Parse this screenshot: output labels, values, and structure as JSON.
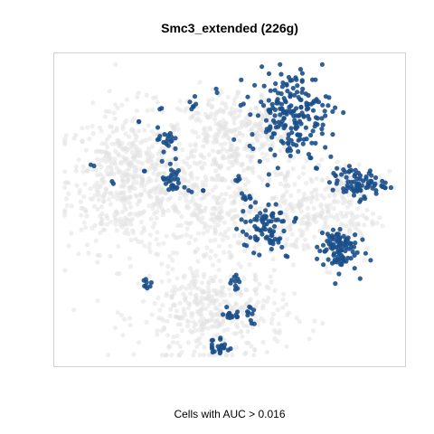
{
  "chart_data": {
    "type": "scatter",
    "title": "Smc3_extended (226g)",
    "xlabel": "",
    "ylabel": "",
    "caption": "Cells with AUC > 0.016",
    "grid": false,
    "axes_visible": false,
    "xlim": [
      0,
      100
    ],
    "ylim": [
      0,
      100
    ],
    "colors": {
      "background_cells": "#e2e2e2",
      "high_auc_cells": "#1a4f8a",
      "frame": "#d0d0d0"
    },
    "series": [
      {
        "group": "background",
        "clusters": [
          {
            "cx": 20,
            "cy": 60,
            "sx": 9,
            "sy": 12,
            "n": 520
          },
          {
            "cx": 48,
            "cy": 75,
            "sx": 8,
            "sy": 8,
            "n": 240
          },
          {
            "cx": 44,
            "cy": 50,
            "sx": 8,
            "sy": 10,
            "n": 260
          },
          {
            "cx": 45,
            "cy": 15,
            "sx": 11,
            "sy": 8,
            "n": 380
          },
          {
            "cx": 68,
            "cy": 50,
            "sx": 7,
            "sy": 8,
            "n": 160
          },
          {
            "cx": 82,
            "cy": 48,
            "sx": 6,
            "sy": 8,
            "n": 140
          },
          {
            "cx": 62,
            "cy": 78,
            "sx": 5,
            "sy": 6,
            "n": 110
          },
          {
            "cx": 88,
            "cy": 60,
            "sx": 4,
            "sy": 3,
            "n": 60
          }
        ]
      },
      {
        "group": "high_auc",
        "clusters": [
          {
            "cx": 68,
            "cy": 83,
            "sx": 6,
            "sy": 7,
            "n": 190
          },
          {
            "cx": 88,
            "cy": 59,
            "sx": 4,
            "sy": 2.5,
            "n": 80
          },
          {
            "cx": 82,
            "cy": 37,
            "sx": 3,
            "sy": 4,
            "n": 95
          },
          {
            "cx": 60,
            "cy": 44,
            "sx": 3.5,
            "sy": 4,
            "n": 75
          },
          {
            "cx": 33,
            "cy": 60,
            "sx": 1.5,
            "sy": 3,
            "n": 30
          },
          {
            "cx": 31,
            "cy": 74,
            "sx": 1.2,
            "sy": 2,
            "n": 18
          },
          {
            "cx": 47,
            "cy": 4,
            "sx": 1.5,
            "sy": 1.8,
            "n": 22
          },
          {
            "cx": 50,
            "cy": 15,
            "sx": 1.5,
            "sy": 1.5,
            "n": 15
          },
          {
            "cx": 56,
            "cy": 14,
            "sx": 0.8,
            "sy": 1.5,
            "n": 10
          },
          {
            "cx": 52,
            "cy": 26,
            "sx": 0.8,
            "sy": 1.5,
            "n": 10
          },
          {
            "cx": 26,
            "cy": 25,
            "sx": 0.8,
            "sy": 1.5,
            "n": 8
          },
          {
            "cx": 39,
            "cy": 86,
            "sx": 1,
            "sy": 1,
            "n": 6
          },
          {
            "cx": 55,
            "cy": 54,
            "sx": 1,
            "sy": 1,
            "n": 8
          },
          {
            "cx": 52,
            "cy": 60,
            "sx": 0.6,
            "sy": 0.8,
            "n": 5
          },
          {
            "cx": 70,
            "cy": 47,
            "sx": 0.5,
            "sy": 0.5,
            "n": 3
          },
          {
            "cx": 68,
            "cy": 70,
            "sx": 0.6,
            "sy": 0.6,
            "n": 4
          },
          {
            "cx": 71,
            "cy": 76,
            "sx": 0.6,
            "sy": 0.6,
            "n": 3
          },
          {
            "cx": 9,
            "cy": 65,
            "sx": 0.4,
            "sy": 0.4,
            "n": 2
          },
          {
            "cx": 15,
            "cy": 59,
            "sx": 0.4,
            "sy": 0.4,
            "n": 2
          },
          {
            "cx": 23,
            "cy": 80,
            "sx": 0.4,
            "sy": 0.4,
            "n": 2
          },
          {
            "cx": 25,
            "cy": 63,
            "sx": 0.4,
            "sy": 0.4,
            "n": 2
          },
          {
            "cx": 38,
            "cy": 56,
            "sx": 0.4,
            "sy": 0.4,
            "n": 2
          },
          {
            "cx": 42,
            "cy": 57,
            "sx": 0.4,
            "sy": 0.4,
            "n": 2
          },
          {
            "cx": 76,
            "cy": 64,
            "sx": 0.4,
            "sy": 0.4,
            "n": 2
          },
          {
            "cx": 74,
            "cy": 68,
            "sx": 0.4,
            "sy": 0.4,
            "n": 2
          },
          {
            "cx": 67,
            "cy": 34,
            "sx": 0.4,
            "sy": 0.4,
            "n": 2
          },
          {
            "cx": 54,
            "cy": 38,
            "sx": 0.4,
            "sy": 0.4,
            "n": 2
          },
          {
            "cx": 46,
            "cy": 90,
            "sx": 0.4,
            "sy": 0.4,
            "n": 2
          },
          {
            "cx": 30,
            "cy": 84,
            "sx": 0.4,
            "sy": 0.4,
            "n": 2
          }
        ]
      }
    ]
  }
}
